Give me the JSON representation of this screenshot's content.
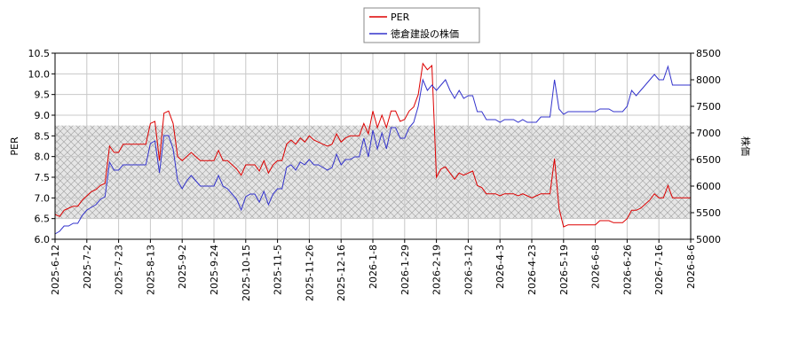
{
  "chart_data": {
    "type": "line",
    "categories": [
      "2025-6-12",
      null,
      null,
      null,
      null,
      null,
      null,
      "2025-7-2",
      null,
      null,
      null,
      null,
      null,
      null,
      "2025-7-23",
      null,
      null,
      null,
      null,
      null,
      null,
      "2025-8-13",
      null,
      null,
      null,
      null,
      null,
      null,
      "2025-9-2",
      null,
      null,
      null,
      null,
      null,
      null,
      "2025-9-24",
      null,
      null,
      null,
      null,
      null,
      null,
      "2025-10-15",
      null,
      null,
      null,
      null,
      null,
      null,
      "2025-11-5",
      null,
      null,
      null,
      null,
      null,
      null,
      "2025-11-26",
      null,
      null,
      null,
      null,
      null,
      null,
      "2025-12-16",
      null,
      null,
      null,
      null,
      null,
      null,
      "2026-1-8",
      null,
      null,
      null,
      null,
      null,
      null,
      "2026-1-29",
      null,
      null,
      null,
      null,
      null,
      null,
      "2026-2-19",
      null,
      null,
      null,
      null,
      null,
      null,
      "2026-3-12",
      null,
      null,
      null,
      null,
      null,
      null,
      "2026-4-3",
      null,
      null,
      null,
      null,
      null,
      null,
      "2026-4-23",
      null,
      null,
      null,
      null,
      null,
      null,
      "2026-5-19",
      null,
      null,
      null,
      null,
      null,
      null,
      "2026-6-8",
      null,
      null,
      null,
      null,
      null,
      null,
      "2026-6-26",
      null,
      null,
      null,
      null,
      null,
      null,
      "2026-7-16",
      null,
      null,
      null,
      null,
      null,
      null,
      "2026-8-6"
    ],
    "series": [
      {
        "name": "PER",
        "color": "#dd0000",
        "axis": "y",
        "values": [
          6.6,
          6.55,
          6.7,
          6.75,
          6.8,
          6.8,
          6.95,
          7.05,
          7.15,
          7.2,
          7.3,
          7.35,
          8.25,
          8.1,
          8.1,
          8.3,
          8.3,
          8.3,
          8.3,
          8.3,
          8.3,
          8.8,
          8.85,
          7.9,
          9.05,
          9.1,
          8.8,
          8.0,
          7.9,
          8.0,
          8.1,
          8.0,
          7.9,
          7.9,
          7.9,
          7.9,
          8.15,
          7.9,
          7.9,
          7.8,
          7.7,
          7.55,
          7.8,
          7.8,
          7.8,
          7.65,
          7.9,
          7.6,
          7.8,
          7.9,
          7.9,
          8.3,
          8.4,
          8.3,
          8.45,
          8.35,
          8.5,
          8.4,
          8.35,
          8.3,
          8.25,
          8.3,
          8.55,
          8.35,
          8.45,
          8.5,
          8.5,
          8.5,
          8.8,
          8.55,
          9.1,
          8.7,
          9.0,
          8.7,
          9.1,
          9.1,
          8.85,
          8.9,
          9.1,
          9.2,
          9.5,
          10.25,
          10.1,
          10.2,
          7.5,
          7.7,
          7.75,
          7.6,
          7.45,
          7.6,
          7.55,
          7.6,
          7.65,
          7.3,
          7.25,
          7.1,
          7.1,
          7.1,
          7.05,
          7.1,
          7.1,
          7.1,
          7.05,
          7.1,
          7.05,
          7.0,
          7.05,
          7.1,
          7.1,
          7.1,
          7.95,
          6.75,
          6.3,
          6.35,
          6.35,
          6.35,
          6.35,
          6.35,
          6.35,
          6.35,
          6.45,
          6.45,
          6.45,
          6.4,
          6.4,
          6.4,
          6.5,
          6.7,
          6.7,
          6.75,
          6.85,
          6.95,
          7.1,
          7.0,
          7.0,
          7.3,
          7.0,
          7.0,
          7.0,
          7.0,
          7.0
        ]
      },
      {
        "name": "徳倉建設の株価",
        "color": "#3333cc",
        "axis": "y2",
        "values": [
          5100,
          5150,
          5250,
          5250,
          5300,
          5300,
          5450,
          5550,
          5600,
          5650,
          5750,
          5800,
          6450,
          6300,
          6300,
          6400,
          6400,
          6400,
          6400,
          6400,
          6400,
          6800,
          6850,
          6250,
          6950,
          6950,
          6700,
          6100,
          5950,
          6100,
          6200,
          6100,
          6000,
          6000,
          6000,
          6000,
          6200,
          6000,
          5950,
          5850,
          5750,
          5550,
          5800,
          5850,
          5850,
          5700,
          5900,
          5650,
          5850,
          5950,
          5950,
          6350,
          6400,
          6300,
          6450,
          6400,
          6500,
          6400,
          6400,
          6350,
          6300,
          6350,
          6600,
          6400,
          6500,
          6500,
          6550,
          6550,
          6900,
          6550,
          7050,
          6700,
          7000,
          6700,
          7100,
          7100,
          6900,
          6900,
          7100,
          7200,
          7500,
          8000,
          7800,
          7900,
          7800,
          7900,
          8000,
          7800,
          7650,
          7800,
          7650,
          7700,
          7700,
          7400,
          7400,
          7250,
          7250,
          7250,
          7200,
          7250,
          7250,
          7250,
          7200,
          7250,
          7200,
          7200,
          7200,
          7300,
          7300,
          7300,
          8000,
          7450,
          7350,
          7400,
          7400,
          7400,
          7400,
          7400,
          7400,
          7400,
          7450,
          7450,
          7450,
          7400,
          7400,
          7400,
          7500,
          7800,
          7700,
          7800,
          7900,
          8000,
          8100,
          8000,
          8000,
          8250,
          7900,
          7900,
          7900,
          7900,
          7900
        ]
      }
    ],
    "ylabel": "PER",
    "y2label": "株価",
    "ylim": [
      6.0,
      10.5
    ],
    "yticks": [
      {
        "value": 6,
        "label": "6.0"
      },
      6.5,
      {
        "value": 7,
        "label": "7.0"
      },
      7.5,
      {
        "value": 8,
        "label": "8.0"
      },
      8.5,
      {
        "value": 9,
        "label": "9.0"
      },
      9.5,
      {
        "value": 10,
        "label": "10.0"
      },
      10.5
    ],
    "y2lim": [
      5000,
      8500
    ],
    "y2ticks": [
      5000,
      5500,
      6000,
      6500,
      7000,
      7500,
      8000,
      8500
    ],
    "shaded_range": [
      6.5,
      8.75
    ],
    "grid": true,
    "legend": "top"
  }
}
